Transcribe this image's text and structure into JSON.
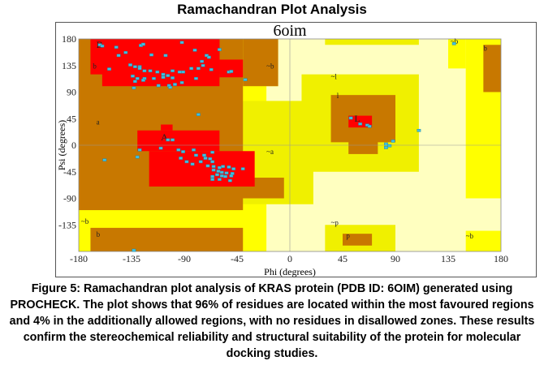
{
  "title": "Ramachandran Plot Analysis",
  "chart_data": {
    "type": "scatter",
    "title": "6oim",
    "xlabel": "Phi (degrees)",
    "ylabel": "Psi (degrees)",
    "xlim": [
      -180,
      180
    ],
    "ylim": [
      -180,
      180
    ],
    "xticks": [
      "-180",
      "-135",
      "-90",
      "-45",
      "0",
      "45",
      "90",
      "135",
      "180"
    ],
    "yticks": [
      "180",
      "135",
      "90",
      "45",
      "0",
      "-45",
      "-90",
      "-135"
    ],
    "region_labels": [
      "B",
      "b",
      "a",
      "A",
      "~b",
      "~a",
      "~l",
      "l",
      "L",
      "~b",
      "b",
      "~p",
      "p",
      "~b",
      "b",
      "~b"
    ],
    "colors": {
      "most_favoured": "#ff0000",
      "additional": "#c87800",
      "generous": "#ffff00",
      "generous2": "#f0f000",
      "disallowed": "#ffffc0",
      "point": "#40c0e0"
    },
    "points": [
      [
        -162,
        170
      ],
      [
        -160,
        168
      ],
      [
        -148,
        166
      ],
      [
        -140,
        157
      ],
      [
        -146,
        152
      ],
      [
        -127,
        169
      ],
      [
        -125,
        171
      ],
      [
        -118,
        153
      ],
      [
        -106,
        152
      ],
      [
        -92,
        174
      ],
      [
        -81,
        161
      ],
      [
        -71,
        152
      ],
      [
        -69,
        149
      ],
      [
        -60,
        162
      ],
      [
        -154,
        129
      ],
      [
        -136,
        136
      ],
      [
        -132,
        133
      ],
      [
        -128,
        133
      ],
      [
        -124,
        126
      ],
      [
        -119,
        126
      ],
      [
        -113,
        124
      ],
      [
        -108,
        120
      ],
      [
        -104,
        118
      ],
      [
        -100,
        126
      ],
      [
        -94,
        124
      ],
      [
        -91,
        124
      ],
      [
        -84,
        130
      ],
      [
        -78,
        130
      ],
      [
        -74,
        135
      ],
      [
        -67,
        128
      ],
      [
        -52,
        124
      ],
      [
        -50,
        125
      ],
      [
        -134,
        117
      ],
      [
        -130,
        113
      ],
      [
        -124,
        113
      ],
      [
        -116,
        113
      ],
      [
        -108,
        115
      ],
      [
        -100,
        114
      ],
      [
        -132,
        108
      ],
      [
        -125,
        110
      ],
      [
        -112,
        101
      ],
      [
        -103,
        101
      ],
      [
        -98,
        103
      ],
      [
        -102,
        98
      ],
      [
        -92,
        106
      ],
      [
        -80,
        113
      ],
      [
        -75,
        142
      ],
      [
        -38,
        111
      ],
      [
        -133,
        97
      ],
      [
        -128,
        130
      ],
      [
        -78,
        52
      ],
      [
        -104,
        9
      ],
      [
        -100,
        9
      ],
      [
        -128,
        -8
      ],
      [
        -130,
        -20
      ],
      [
        -158,
        -25
      ],
      [
        -110,
        -5
      ],
      [
        -95,
        -8
      ],
      [
        -91,
        -11
      ],
      [
        -82,
        -8
      ],
      [
        -93,
        -22
      ],
      [
        -80,
        -17
      ],
      [
        -73,
        -17
      ],
      [
        -72,
        -22
      ],
      [
        -68,
        -23
      ],
      [
        -66,
        -12
      ],
      [
        -76,
        -28
      ],
      [
        -83,
        -32
      ],
      [
        -88,
        -28
      ],
      [
        -66,
        -28
      ],
      [
        -70,
        -35
      ],
      [
        -65,
        -36
      ],
      [
        -60,
        -38
      ],
      [
        -57,
        -36
      ],
      [
        -52,
        -37
      ],
      [
        -65,
        -42
      ],
      [
        -61,
        -44
      ],
      [
        -58,
        -46
      ],
      [
        -54,
        -47
      ],
      [
        -62,
        -50
      ],
      [
        -58,
        -52
      ],
      [
        -55,
        -53
      ],
      [
        -66,
        -53
      ],
      [
        -48,
        -40
      ],
      [
        -49,
        -48
      ],
      [
        -50,
        -52
      ],
      [
        -66,
        -58
      ],
      [
        -60,
        -58
      ],
      [
        -51,
        -60
      ],
      [
        -40,
        -40
      ],
      [
        -133,
        -178
      ],
      [
        52,
        46
      ],
      [
        60,
        36
      ],
      [
        66,
        34
      ],
      [
        68,
        32
      ],
      [
        82,
        2
      ],
      [
        85,
        -1
      ],
      [
        82,
        -4
      ],
      [
        88,
        7
      ],
      [
        110,
        25
      ],
      [
        140,
        172
      ]
    ]
  },
  "caption": {
    "label": "Figure 5:",
    "text": " Ramachandran plot analysis of KRAS protein (PDB ID: 6OIM) generated using PROCHECK. The plot shows that 96% of residues are located within the most favoured regions and 4% in the additionally allowed regions, with no residues in disallowed zones. These results confirm the stereochemical reliability and structural suitability of the protein for molecular docking studies."
  }
}
